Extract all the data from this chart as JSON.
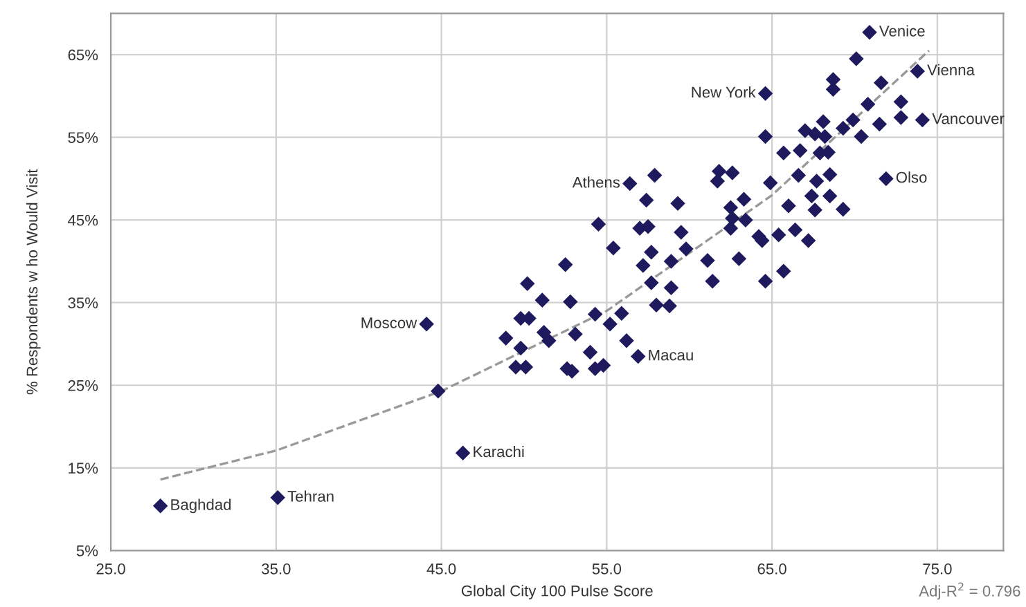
{
  "chart_data": {
    "type": "scatter",
    "xlabel": "Global City 100 Pulse Score",
    "ylabel": "% Respondents w ho Would Visit",
    "xlim": [
      25,
      79
    ],
    "xticks": [
      {
        "value": 25,
        "label": "25.0"
      },
      {
        "value": 35,
        "label": "35.0"
      },
      {
        "value": 45,
        "label": "45.0"
      },
      {
        "value": 55,
        "label": "55.0"
      },
      {
        "value": 65,
        "label": "65.0"
      },
      {
        "value": 75,
        "label": "75.0"
      }
    ],
    "ylim": [
      5,
      70
    ],
    "yticks": [
      {
        "value": 5,
        "label": "5%"
      },
      {
        "value": 15,
        "label": "15%"
      },
      {
        "value": 25,
        "label": "25%"
      },
      {
        "value": 35,
        "label": "35%"
      },
      {
        "value": 45,
        "label": "45%"
      },
      {
        "value": 55,
        "label": "55%"
      },
      {
        "value": 65,
        "label": "65%"
      }
    ],
    "grid": true,
    "legend": false,
    "series": [
      {
        "color": "#1f1a5e",
        "marker": "diamond",
        "x": [
          28.0,
          35.1,
          46.3,
          44.1,
          56.9,
          56.4,
          64.6,
          70.9,
          73.8,
          74.1,
          71.9,
          44.8,
          48.9,
          49.8,
          50.3,
          50.2,
          49.8,
          49.5,
          50.1,
          51.1,
          51.2,
          51.5,
          52.5,
          52.8,
          52.6,
          52.9,
          53.1,
          54.3,
          54.0,
          54.3,
          54.8,
          55.2,
          55.9,
          56.2,
          55.4,
          54.5,
          57.2,
          57.7,
          57.7,
          58.0,
          58.8,
          57.9,
          57.4,
          57.0,
          57.5,
          59.3,
          59.5,
          59.8,
          58.9,
          58.9,
          61.1,
          61.4,
          63.0,
          62.6,
          61.8,
          61.7,
          62.5,
          63.3,
          62.6,
          63.4,
          62.5,
          64.2,
          64.4,
          65.4,
          66.4,
          67.2,
          65.7,
          64.6,
          64.6,
          65.7,
          66.7,
          67.9,
          68.4,
          68.2,
          70.4,
          64.9,
          66.6,
          67.7,
          68.5,
          66.0,
          67.4,
          68.5,
          67.6,
          69.3,
          70.1,
          68.7,
          68.7,
          71.6,
          70.8,
          72.8,
          72.8,
          71.5,
          69.9,
          69.3,
          68.1,
          67.0,
          67.6
        ],
        "values": [
          10.4,
          11.4,
          16.8,
          32.4,
          28.5,
          49.4,
          60.3,
          67.7,
          63.0,
          57.1,
          50.0,
          24.3,
          30.7,
          33.1,
          33.1,
          37.3,
          29.5,
          27.2,
          27.2,
          35.3,
          31.4,
          30.4,
          39.6,
          35.1,
          27.0,
          26.7,
          31.2,
          33.6,
          29.0,
          27.0,
          27.4,
          32.4,
          33.7,
          30.4,
          41.6,
          44.5,
          39.5,
          41.1,
          37.4,
          34.7,
          34.6,
          50.4,
          47.4,
          44.0,
          44.2,
          47.0,
          43.5,
          41.5,
          40.0,
          36.8,
          40.1,
          37.6,
          40.3,
          50.7,
          50.9,
          49.7,
          46.5,
          47.5,
          45.2,
          45.0,
          44.0,
          43.0,
          42.5,
          43.2,
          43.8,
          42.5,
          38.8,
          37.6,
          55.1,
          53.1,
          53.4,
          53.1,
          53.2,
          55.1,
          55.1,
          49.5,
          50.4,
          49.7,
          50.5,
          46.7,
          47.9,
          47.9,
          46.2,
          46.3,
          64.5,
          62.0,
          60.8,
          61.6,
          59.0,
          59.3,
          57.4,
          56.6,
          57.1,
          56.1,
          56.9,
          55.8,
          55.4
        ]
      },
      {
        "type": "line",
        "color": "#999999",
        "line_style": "dashed",
        "marker": "none",
        "x": [
          28,
          35,
          45,
          55,
          65,
          74.5
        ],
        "values": [
          13.6,
          17.1,
          24.3,
          34.0,
          48.0,
          65.5
        ]
      }
    ],
    "annotations": [
      {
        "text": "Baghdad",
        "x": 28.0,
        "y": 10.4
      },
      {
        "text": "Tehran",
        "x": 35.1,
        "y": 11.4
      },
      {
        "text": "Karachi",
        "x": 46.3,
        "y": 16.8
      },
      {
        "text": "Moscow",
        "x": 44.1,
        "y": 32.4
      },
      {
        "text": "Macau",
        "x": 56.9,
        "y": 28.5
      },
      {
        "text": "Athens",
        "x": 56.4,
        "y": 49.4
      },
      {
        "text": "New York",
        "x": 64.6,
        "y": 60.3
      },
      {
        "text": "Venice",
        "x": 70.9,
        "y": 67.7
      },
      {
        "text": "Vienna",
        "x": 73.8,
        "y": 63.0
      },
      {
        "text": "Vancouver",
        "x": 74.1,
        "y": 57.1
      },
      {
        "text": "Olso",
        "x": 71.9,
        "y": 50.0
      },
      "Adj-R$^{2}$ = 0.796"
    ]
  }
}
